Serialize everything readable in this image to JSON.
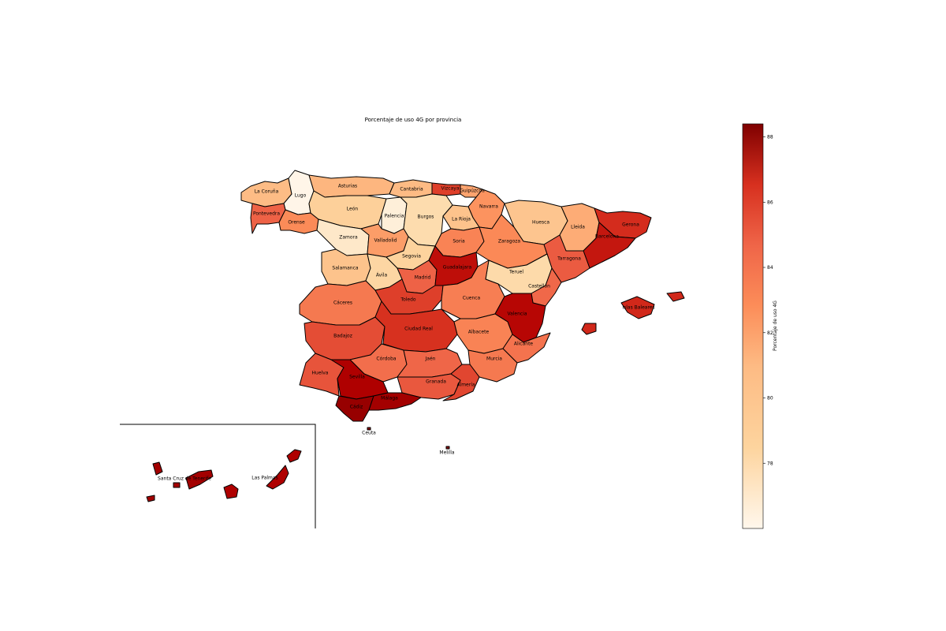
{
  "map": {
    "title": "Porcentaje de uso 4G por provincia",
    "colormap": "OrRd",
    "value_range": [
      76,
      88.4
    ],
    "provinces": [
      {
        "name": "La Coruña",
        "value": 81.5
      },
      {
        "name": "Lugo",
        "value": 76.2
      },
      {
        "name": "Pontevedra",
        "value": 85.0
      },
      {
        "name": "Orense",
        "value": 83.5
      },
      {
        "name": "Asturias",
        "value": 81.8
      },
      {
        "name": "Cantabria",
        "value": 81.6
      },
      {
        "name": "Vizcaya",
        "value": 86.0
      },
      {
        "name": "Guipúzcoa",
        "value": 82.5
      },
      {
        "name": "Navarra",
        "value": 83.2
      },
      {
        "name": "León",
        "value": 80.0
      },
      {
        "name": "Palencia",
        "value": 77.0
      },
      {
        "name": "Burgos",
        "value": 79.0
      },
      {
        "name": "La Rioja",
        "value": 81.0
      },
      {
        "name": "Huesca",
        "value": 80.8
      },
      {
        "name": "Lleida",
        "value": 82.2
      },
      {
        "name": "Gerona",
        "value": 86.5
      },
      {
        "name": "Barcelona",
        "value": 87.0
      },
      {
        "name": "Zamora",
        "value": 77.8
      },
      {
        "name": "Valladolid",
        "value": 82.8
      },
      {
        "name": "Soria",
        "value": 83.8
      },
      {
        "name": "Zaragoza",
        "value": 83.6
      },
      {
        "name": "Tarragona",
        "value": 85.2
      },
      {
        "name": "Salamanca",
        "value": 81.0
      },
      {
        "name": "Segovia",
        "value": 79.8
      },
      {
        "name": "Ávila",
        "value": 79.5
      },
      {
        "name": "Madrid",
        "value": 85.0
      },
      {
        "name": "Guadalajara",
        "value": 87.2
      },
      {
        "name": "Teruel",
        "value": 79.2
      },
      {
        "name": "Castellón",
        "value": 84.8
      },
      {
        "name": "Cáceres",
        "value": 84.2
      },
      {
        "name": "Toledo",
        "value": 86.0
      },
      {
        "name": "Cuenca",
        "value": 84.0
      },
      {
        "name": "Valencia",
        "value": 87.4
      },
      {
        "name": "Badajoz",
        "value": 85.6
      },
      {
        "name": "Ciudad Real",
        "value": 86.4
      },
      {
        "name": "Albacete",
        "value": 83.8
      },
      {
        "name": "Alicante",
        "value": 84.4
      },
      {
        "name": "Islas Baleares",
        "value": 86.6
      },
      {
        "name": "Huelva",
        "value": 85.4
      },
      {
        "name": "Córdoba",
        "value": 84.6
      },
      {
        "name": "Jaén",
        "value": 84.9
      },
      {
        "name": "Murcia",
        "value": 84.2
      },
      {
        "name": "Sevilla",
        "value": 87.6
      },
      {
        "name": "Granada",
        "value": 85.3
      },
      {
        "name": "Almería",
        "value": 85.8
      },
      {
        "name": "Cádiz",
        "value": 88.0
      },
      {
        "name": "Málaga",
        "value": 87.8
      },
      {
        "name": "Ceuta",
        "value": 88.2
      },
      {
        "name": "Melilla",
        "value": 88.2
      },
      {
        "name": "Santa Cruz de Tenerife",
        "value": 87.8
      },
      {
        "name": "Las Palmas",
        "value": 87.6
      }
    ]
  },
  "colorbar": {
    "label": "Porcentaje de uso 4G",
    "ticks": [
      "78",
      "80",
      "82",
      "84",
      "86",
      "88"
    ],
    "tick_values": [
      78,
      80,
      82,
      84,
      86,
      88
    ]
  }
}
